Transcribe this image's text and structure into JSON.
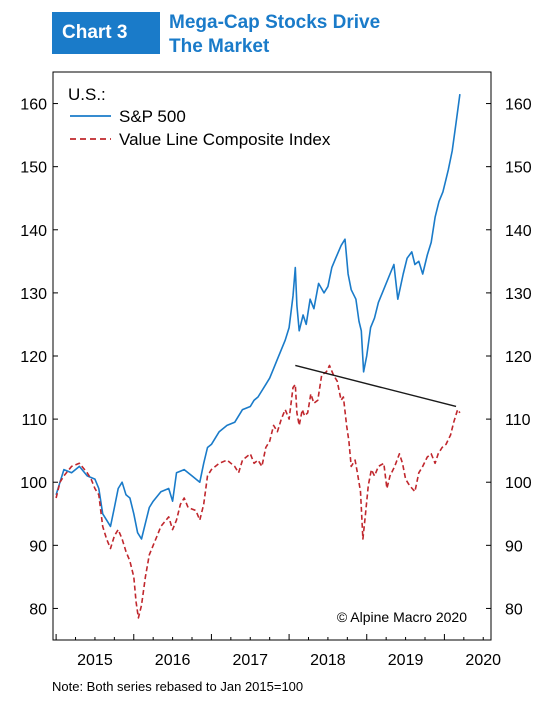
{
  "header": {
    "tag": "Chart 3",
    "title_line1": "Mega-Cap Stocks Drive",
    "title_line2": "The Market"
  },
  "note": "Note: Both series rebased to Jan 2015=100",
  "copyright": "© Alpine Macro 2020",
  "colors": {
    "brand": "#1a7bc9",
    "sp500": "#1a7bc9",
    "valueline": "#c0272d",
    "trendline": "#1a1a1a"
  },
  "chart_data": {
    "type": "line",
    "legend_title": "U.S.:",
    "legend_position": "top-left",
    "grid": false,
    "ylim": [
      75,
      165
    ],
    "yticks": [
      80,
      90,
      100,
      110,
      120,
      130,
      140,
      150,
      160
    ],
    "xlim": [
      2014.96,
      2020.6
    ],
    "xtick_labels": [
      "2015",
      "2016",
      "2017",
      "2018",
      "2019",
      "2020"
    ],
    "series": [
      {
        "name": "S&P 500",
        "style": "solid",
        "points": [
          [
            2015.0,
            98.0
          ],
          [
            2015.05,
            100.0
          ],
          [
            2015.1,
            102.0
          ],
          [
            2015.2,
            101.5
          ],
          [
            2015.3,
            102.5
          ],
          [
            2015.4,
            101.0
          ],
          [
            2015.5,
            100.5
          ],
          [
            2015.55,
            99.0
          ],
          [
            2015.6,
            95.0
          ],
          [
            2015.65,
            94.0
          ],
          [
            2015.7,
            93.0
          ],
          [
            2015.75,
            96.0
          ],
          [
            2015.8,
            99.0
          ],
          [
            2015.85,
            100.0
          ],
          [
            2015.9,
            98.0
          ],
          [
            2015.95,
            97.5
          ],
          [
            2016.0,
            95.0
          ],
          [
            2016.05,
            92.0
          ],
          [
            2016.1,
            91.0
          ],
          [
            2016.15,
            93.5
          ],
          [
            2016.2,
            96.0
          ],
          [
            2016.25,
            97.0
          ],
          [
            2016.35,
            98.5
          ],
          [
            2016.45,
            99.0
          ],
          [
            2016.5,
            97.0
          ],
          [
            2016.55,
            101.5
          ],
          [
            2016.65,
            102.0
          ],
          [
            2016.75,
            101.0
          ],
          [
            2016.85,
            100.0
          ],
          [
            2016.9,
            103.0
          ],
          [
            2016.95,
            105.5
          ],
          [
            2017.0,
            106.0
          ],
          [
            2017.1,
            108.0
          ],
          [
            2017.2,
            109.0
          ],
          [
            2017.3,
            109.5
          ],
          [
            2017.4,
            111.5
          ],
          [
            2017.5,
            112.0
          ],
          [
            2017.55,
            113.0
          ],
          [
            2017.6,
            113.5
          ],
          [
            2017.7,
            115.5
          ],
          [
            2017.75,
            116.5
          ],
          [
            2017.8,
            118.0
          ],
          [
            2017.85,
            119.5
          ],
          [
            2017.9,
            121.0
          ],
          [
            2017.95,
            122.5
          ],
          [
            2018.0,
            124.5
          ],
          [
            2018.05,
            129.5
          ],
          [
            2018.08,
            134.0
          ],
          [
            2018.1,
            128.0
          ],
          [
            2018.13,
            124.0
          ],
          [
            2018.18,
            126.5
          ],
          [
            2018.22,
            125.0
          ],
          [
            2018.27,
            129.0
          ],
          [
            2018.32,
            127.5
          ],
          [
            2018.38,
            131.5
          ],
          [
            2018.45,
            130.0
          ],
          [
            2018.5,
            131.0
          ],
          [
            2018.55,
            134.0
          ],
          [
            2018.6,
            135.5
          ],
          [
            2018.67,
            137.5
          ],
          [
            2018.72,
            138.5
          ],
          [
            2018.76,
            133.0
          ],
          [
            2018.8,
            130.5
          ],
          [
            2018.86,
            129.0
          ],
          [
            2018.9,
            125.5
          ],
          [
            2018.93,
            124.0
          ],
          [
            2018.96,
            117.5
          ],
          [
            2019.0,
            120.0
          ],
          [
            2019.05,
            124.5
          ],
          [
            2019.1,
            126.0
          ],
          [
            2019.15,
            128.5
          ],
          [
            2019.2,
            130.0
          ],
          [
            2019.3,
            133.0
          ],
          [
            2019.35,
            134.5
          ],
          [
            2019.4,
            129.0
          ],
          [
            2019.47,
            133.0
          ],
          [
            2019.52,
            135.5
          ],
          [
            2019.58,
            136.5
          ],
          [
            2019.62,
            134.5
          ],
          [
            2019.67,
            135.0
          ],
          [
            2019.72,
            133.0
          ],
          [
            2019.78,
            136.0
          ],
          [
            2019.83,
            138.0
          ],
          [
            2019.88,
            142.0
          ],
          [
            2019.93,
            144.5
          ],
          [
            2019.98,
            146.0
          ],
          [
            2020.02,
            148.0
          ],
          [
            2020.05,
            149.5
          ],
          [
            2020.1,
            152.5
          ],
          [
            2020.15,
            157.0
          ],
          [
            2020.2,
            161.5
          ]
        ]
      },
      {
        "name": "Value Line Composite Index",
        "style": "dashed",
        "points": [
          [
            2015.0,
            97.5
          ],
          [
            2015.05,
            100.0
          ],
          [
            2015.1,
            101.0
          ],
          [
            2015.2,
            102.5
          ],
          [
            2015.3,
            103.0
          ],
          [
            2015.4,
            101.5
          ],
          [
            2015.45,
            100.5
          ],
          [
            2015.5,
            99.0
          ],
          [
            2015.55,
            98.0
          ],
          [
            2015.6,
            93.0
          ],
          [
            2015.65,
            91.0
          ],
          [
            2015.7,
            89.5
          ],
          [
            2015.75,
            91.5
          ],
          [
            2015.8,
            92.5
          ],
          [
            2015.85,
            91.0
          ],
          [
            2015.9,
            89.0
          ],
          [
            2015.95,
            87.5
          ],
          [
            2016.0,
            85.0
          ],
          [
            2016.03,
            81.0
          ],
          [
            2016.06,
            78.5
          ],
          [
            2016.1,
            80.5
          ],
          [
            2016.15,
            85.0
          ],
          [
            2016.2,
            88.5
          ],
          [
            2016.25,
            90.0
          ],
          [
            2016.3,
            91.5
          ],
          [
            2016.35,
            93.0
          ],
          [
            2016.45,
            94.5
          ],
          [
            2016.5,
            92.5
          ],
          [
            2016.55,
            94.0
          ],
          [
            2016.6,
            96.5
          ],
          [
            2016.65,
            97.5
          ],
          [
            2016.7,
            96.0
          ],
          [
            2016.8,
            95.5
          ],
          [
            2016.85,
            94.0
          ],
          [
            2016.9,
            96.5
          ],
          [
            2016.95,
            101.0
          ],
          [
            2017.0,
            102.0
          ],
          [
            2017.1,
            103.0
          ],
          [
            2017.2,
            103.5
          ],
          [
            2017.3,
            102.5
          ],
          [
            2017.35,
            101.5
          ],
          [
            2017.4,
            103.5
          ],
          [
            2017.5,
            104.5
          ],
          [
            2017.55,
            103.0
          ],
          [
            2017.6,
            103.5
          ],
          [
            2017.65,
            102.5
          ],
          [
            2017.7,
            105.5
          ],
          [
            2017.75,
            106.5
          ],
          [
            2017.8,
            109.0
          ],
          [
            2017.85,
            108.0
          ],
          [
            2017.9,
            110.0
          ],
          [
            2017.95,
            111.5
          ],
          [
            2018.0,
            110.0
          ],
          [
            2018.05,
            115.0
          ],
          [
            2018.08,
            115.5
          ],
          [
            2018.1,
            111.0
          ],
          [
            2018.13,
            109.0
          ],
          [
            2018.17,
            111.5
          ],
          [
            2018.2,
            110.5
          ],
          [
            2018.24,
            111.0
          ],
          [
            2018.28,
            114.0
          ],
          [
            2018.32,
            112.5
          ],
          [
            2018.37,
            113.0
          ],
          [
            2018.42,
            117.0
          ],
          [
            2018.48,
            117.5
          ],
          [
            2018.52,
            118.5
          ],
          [
            2018.57,
            117.0
          ],
          [
            2018.62,
            116.0
          ],
          [
            2018.67,
            113.0
          ],
          [
            2018.7,
            113.5
          ],
          [
            2018.74,
            109.0
          ],
          [
            2018.77,
            106.5
          ],
          [
            2018.8,
            102.5
          ],
          [
            2018.85,
            103.5
          ],
          [
            2018.88,
            101.5
          ],
          [
            2018.92,
            98.5
          ],
          [
            2018.95,
            91.0
          ],
          [
            2018.98,
            94.5
          ],
          [
            2019.02,
            99.5
          ],
          [
            2019.06,
            102.0
          ],
          [
            2019.1,
            101.0
          ],
          [
            2019.15,
            102.5
          ],
          [
            2019.22,
            103.0
          ],
          [
            2019.26,
            99.0
          ],
          [
            2019.3,
            101.0
          ],
          [
            2019.36,
            102.5
          ],
          [
            2019.42,
            104.5
          ],
          [
            2019.46,
            103.0
          ],
          [
            2019.5,
            100.5
          ],
          [
            2019.55,
            99.5
          ],
          [
            2019.62,
            98.5
          ],
          [
            2019.67,
            101.5
          ],
          [
            2019.72,
            102.5
          ],
          [
            2019.78,
            104.0
          ],
          [
            2019.83,
            104.5
          ],
          [
            2019.88,
            103.0
          ],
          [
            2019.92,
            104.5
          ],
          [
            2019.97,
            105.5
          ],
          [
            2020.02,
            106.0
          ],
          [
            2020.08,
            107.5
          ],
          [
            2020.12,
            109.5
          ],
          [
            2020.17,
            111.5
          ],
          [
            2020.2,
            111.0
          ]
        ]
      }
    ],
    "annotations": [
      {
        "type": "trendline",
        "from": [
          2018.08,
          118.5
        ],
        "to": [
          2020.15,
          112.0
        ]
      }
    ]
  }
}
